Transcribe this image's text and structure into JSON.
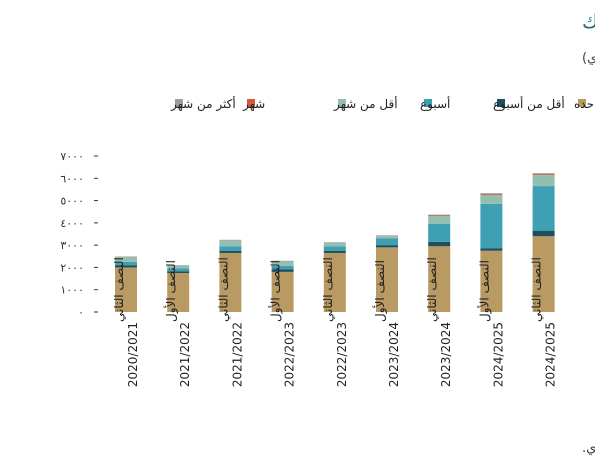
{
  "chart_data": {
    "type": "bar",
    "stacked": true,
    "title": "حجم سوق الإنتربنك",
    "subtitle": "(بالمليار جنيه مصري)",
    "source": "المصدر: البنك المركزي المصري.",
    "ylim": [
      0,
      7000
    ],
    "yticks": [
      0,
      1000,
      2000,
      3000,
      4000,
      5000,
      6000,
      7000
    ],
    "ytick_labels": [
      "٠",
      "١٠٠٠",
      "٢٠٠٠",
      "٣٠٠٠",
      "٤٠٠٠",
      "٥٠٠٠",
      "٦٠٠٠",
      "٧٠٠٠"
    ],
    "categories": [
      {
        "half": "النصف الثاني",
        "year": "2020/2021"
      },
      {
        "half": "النصف الأول",
        "year": "2021/2022"
      },
      {
        "half": "النصف الثاني",
        "year": "2021/2022"
      },
      {
        "half": "النصف الأول",
        "year": "2022/2023"
      },
      {
        "half": "النصف الثاني",
        "year": "2022/2023"
      },
      {
        "half": "النصف الأول",
        "year": "2023/2024"
      },
      {
        "half": "النصف الثاني",
        "year": "2023/2024"
      },
      {
        "half": "النصف الأول",
        "year": "2024/2025"
      },
      {
        "half": "النصف الثاني",
        "year": "2024/2025"
      }
    ],
    "legend_position": "top",
    "series": [
      {
        "name": "ليله واحده",
        "color": "#b99a63",
        "values": [
          2000,
          1750,
          2650,
          1800,
          2650,
          2900,
          2950,
          2750,
          3400
        ]
      },
      {
        "name": "أقل من أسبوع",
        "color": "#1d4f5c",
        "values": [
          100,
          80,
          100,
          120,
          100,
          100,
          200,
          100,
          250
        ]
      },
      {
        "name": "أسبوع",
        "color": "#3fa0b3",
        "values": [
          150,
          120,
          200,
          150,
          200,
          300,
          800,
          2000,
          2000
        ]
      },
      {
        "name": "أقل من شهر",
        "color": "#93bfb0",
        "values": [
          200,
          120,
          250,
          200,
          150,
          100,
          350,
          400,
          500
        ]
      },
      {
        "name": "شهر",
        "color": "#d25a3e",
        "values": [
          0,
          0,
          0,
          0,
          0,
          0,
          30,
          40,
          40
        ]
      },
      {
        "name": "أكثر من شهر",
        "color": "#9c9c9c",
        "values": [
          40,
          30,
          40,
          30,
          30,
          40,
          40,
          40,
          40
        ]
      }
    ]
  }
}
